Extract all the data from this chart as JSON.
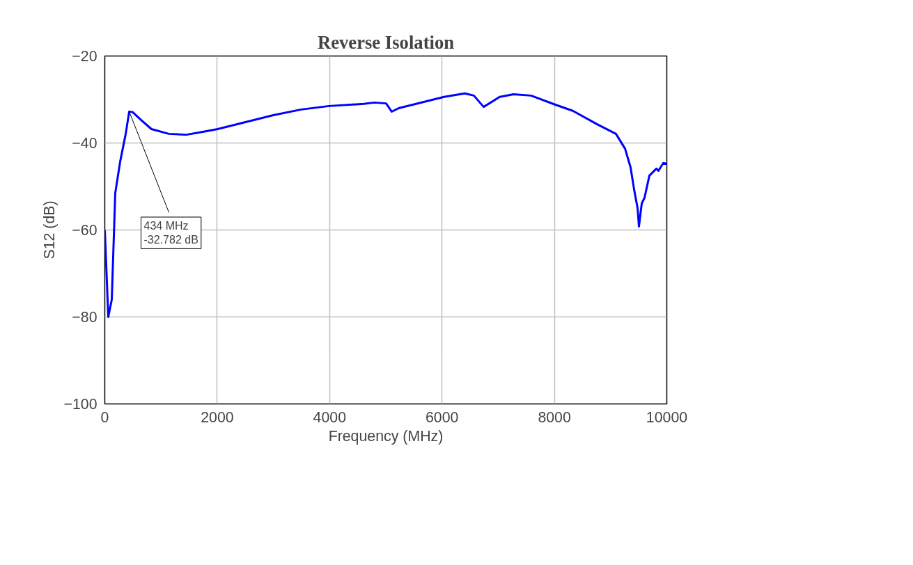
{
  "chart_data": {
    "type": "line",
    "title": "Reverse Isolation",
    "xlabel": "Frequency (MHz)",
    "ylabel": "S12 (dB)",
    "x": [
      0,
      62,
      124,
      186,
      273,
      372,
      434,
      496,
      644,
      830,
      1140,
      1450,
      1760,
      2007,
      2503,
      2999,
      3494,
      3990,
      4610,
      4796,
      5006,
      5105,
      5229,
      5477,
      5725,
      6035,
      6406,
      6567,
      6741,
      7026,
      7274,
      7584,
      8018,
      8327,
      8761,
      9095,
      9257,
      9355,
      9418,
      9480,
      9504,
      9554,
      9603,
      9690,
      9814,
      9851,
      9938,
      10000
    ],
    "series": [
      {
        "color": "#0000ff",
        "values": [
          -60,
          -80,
          -76,
          -51.5,
          -44.3,
          -37.9,
          -32.782,
          -32.9,
          -34.7,
          -36.8,
          -37.9,
          -38.1,
          -37.4,
          -36.8,
          -35.2,
          -33.6,
          -32.3,
          -31.5,
          -31.0,
          -30.7,
          -30.9,
          -32.8,
          -32.0,
          -31.2,
          -30.4,
          -29.4,
          -28.6,
          -29.1,
          -31.7,
          -29.4,
          -28.8,
          -29.1,
          -31.2,
          -32.6,
          -35.7,
          -37.9,
          -41.3,
          -45.6,
          -50.7,
          -55.0,
          -59.2,
          -53.9,
          -52.6,
          -47.5,
          -45.9,
          -46.4,
          -44.6,
          -44.8
        ]
      }
    ],
    "xlim": [
      0,
      10000
    ],
    "ylim": [
      -100,
      -20
    ],
    "xticks": [
      0,
      2000,
      4000,
      6000,
      8000,
      10000
    ],
    "yticks": [
      -100,
      -80,
      -60,
      -40,
      -20
    ],
    "grid": true,
    "line_style": "solid",
    "marker": "none",
    "annotations": [
      {
        "text": "434 MHz\n-32.782 dB",
        "x": 434,
        "y": -32.782
      }
    ]
  }
}
